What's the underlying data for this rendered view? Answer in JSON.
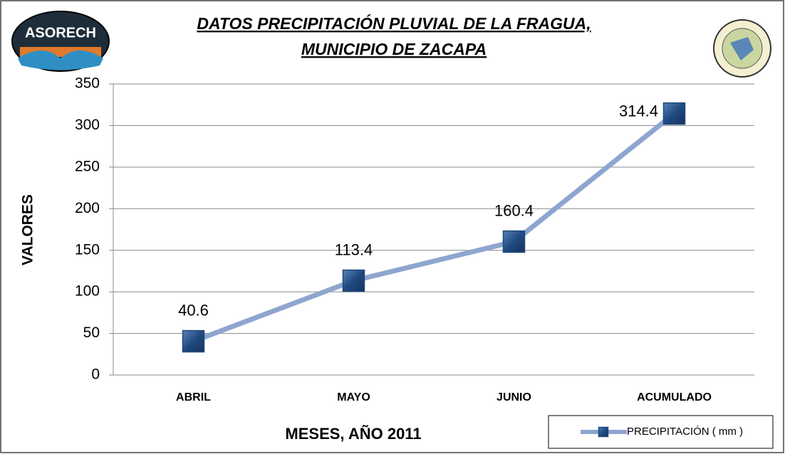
{
  "logo": {
    "text": "ASORECH"
  },
  "chart_data": {
    "type": "line",
    "title": [
      "DATOS  PRECIPITACIÓN PLUVIAL  DE  LA  FRAGUA,",
      "MUNICIPIO DE  ZACAPA"
    ],
    "y_label": "VALORES",
    "x_label": "MESES, AÑO 2011",
    "categories": [
      "ABRIL",
      "MAYO",
      "JUNIO",
      "ACUMULADO"
    ],
    "series": [
      {
        "name": "PRECIPITACIÓN ( mm )",
        "color": "#8ea6cf",
        "marker_color": "#1f497d",
        "values": [
          40.6,
          113.4,
          160.4,
          314.4
        ]
      }
    ],
    "ylim": [
      0,
      350
    ],
    "yticks": [
      0,
      50,
      100,
      150,
      200,
      250,
      300,
      350
    ],
    "grid": true,
    "legend": "lower right"
  }
}
